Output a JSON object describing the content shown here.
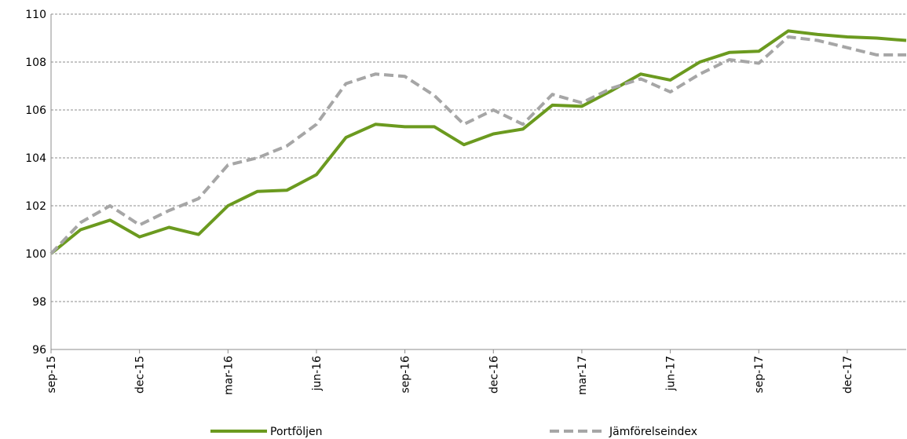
{
  "chart_data": {
    "type": "line",
    "categories": [
      "sep-15",
      null,
      null,
      "dec-15",
      null,
      null,
      "mar-16",
      null,
      null,
      "jun-16",
      null,
      null,
      "sep-16",
      null,
      null,
      "dec-16",
      null,
      null,
      "mar-17",
      null,
      null,
      "jun-17",
      null,
      null,
      "sep-17",
      null,
      null,
      "dec-17",
      null,
      null
    ],
    "series": [
      {
        "name": "Portföljen",
        "color": "#6b9a1f",
        "dash": false,
        "values": [
          100,
          101,
          101.4,
          100.7,
          101.1,
          100.8,
          102,
          102.6,
          102.65,
          103.3,
          104.85,
          105.4,
          105.3,
          105.3,
          104.55,
          105,
          105.2,
          106.2,
          106.15,
          106.8,
          107.5,
          107.25,
          108,
          108.4,
          108.45,
          109.3,
          109.15,
          109.05,
          109,
          108.9
        ]
      },
      {
        "name": "Jämförelseindex",
        "color": "#a6a6a6",
        "dash": true,
        "values": [
          100,
          101.3,
          102,
          101.2,
          101.8,
          102.3,
          103.7,
          104,
          104.5,
          105.4,
          107.1,
          107.5,
          107.4,
          106.6,
          105.4,
          106,
          105.4,
          106.65,
          106.3,
          106.9,
          107.3,
          106.75,
          107.5,
          108.1,
          107.95,
          109.05,
          108.9,
          108.6,
          108.3,
          108.3
        ]
      }
    ],
    "ylim": [
      96,
      110
    ],
    "yticks": [
      96,
      98,
      100,
      102,
      104,
      106,
      108,
      110
    ],
    "grid": true,
    "legend": "bottom"
  }
}
